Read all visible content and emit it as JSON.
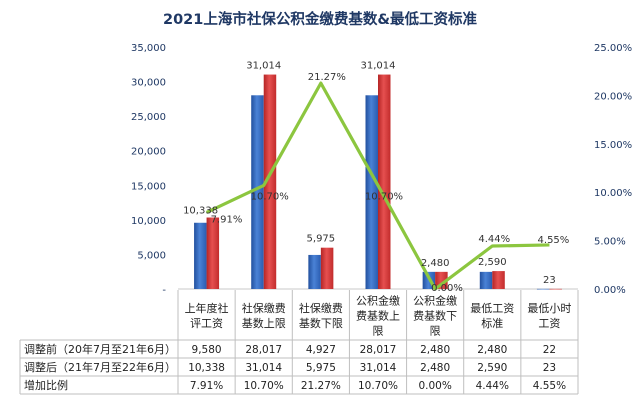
{
  "chart_data": {
    "type": "bar",
    "title": "2021上海市社保公积金缴费基数&最低工资标准",
    "categories": [
      "上年度社评工资",
      "社保缴费基数上限",
      "社保缴费基数下限",
      "公积金缴费基数上限",
      "公积金缴费基数下限",
      "最低工资标准",
      "最低小时工资"
    ],
    "category_lines": [
      [
        "上年度社",
        "评工资"
      ],
      [
        "社保缴费",
        "基数上限"
      ],
      [
        "社保缴费",
        "基数下限"
      ],
      [
        "公积金缴",
        "费基数上",
        "限"
      ],
      [
        "公积金缴",
        "费基数下",
        "限"
      ],
      [
        "最低工资",
        "标准"
      ],
      [
        "最低小时",
        "工资"
      ]
    ],
    "series": [
      {
        "name": "调整前（20年7月至21年6月）",
        "type": "bar",
        "axis": "left",
        "values": [
          9580,
          28017,
          4927,
          28017,
          2480,
          2480,
          22
        ]
      },
      {
        "name": "调整后（21年7月至22年6月）",
        "type": "bar",
        "axis": "left",
        "values": [
          10338,
          31014,
          5975,
          31014,
          2480,
          2590,
          23
        ]
      },
      {
        "name": "增加比例",
        "type": "line",
        "axis": "right",
        "values": [
          0.0791,
          0.107,
          0.2127,
          0.107,
          0.0,
          0.0444,
          0.0455
        ]
      }
    ],
    "bar_labels": [
      "10,338",
      "31,014",
      "5,975",
      "31,014",
      "2,480",
      "2,590",
      "23"
    ],
    "line_labels": [
      "7.91%",
      "10.70%",
      "21.27%",
      "10.70%",
      "0.00%",
      "4.44%",
      "4.55%"
    ],
    "y_left": {
      "range": [
        0,
        35000
      ],
      "ticks": [
        "-",
        "5,000",
        "10,000",
        "15,000",
        "20,000",
        "25,000",
        "30,000",
        "35,000"
      ]
    },
    "y_right": {
      "range": [
        0,
        0.25
      ],
      "ticks": [
        "0.00%",
        "5.00%",
        "10.00%",
        "15.00%",
        "20.00%",
        "25.00%"
      ]
    },
    "table": {
      "rows": [
        {
          "label": "调整前（20年7月至21年6月）",
          "cells": [
            "9,580",
            "28,017",
            "4,927",
            "28,017",
            "2,480",
            "2,480",
            "22"
          ]
        },
        {
          "label": "调整后（21年7月至22年6月）",
          "cells": [
            "10,338",
            "31,014",
            "5,975",
            "31,014",
            "2,480",
            "2,590",
            "23"
          ]
        },
        {
          "label": "增加比例",
          "cells": [
            "7.91%",
            "10.70%",
            "21.27%",
            "10.70%",
            "0.00%",
            "4.44%",
            "4.55%"
          ]
        }
      ]
    },
    "colors": {
      "before": "#3a6fc4",
      "after": "#d63a3a",
      "line": "#8cc63f",
      "axis_text": "#1f3864"
    }
  }
}
